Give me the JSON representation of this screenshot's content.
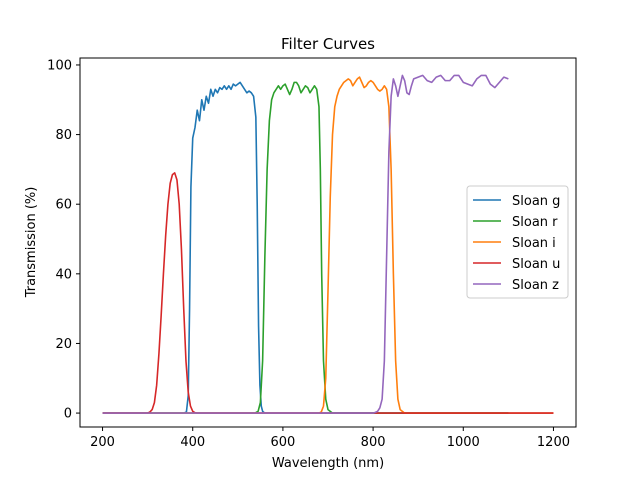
{
  "chart_data": {
    "type": "line",
    "title": "Filter Curves",
    "xlabel": "Wavelength (nm)",
    "ylabel": "Transmission (%)",
    "xlim": [
      150,
      1250
    ],
    "ylim": [
      -4,
      102
    ],
    "xticks": [
      200,
      400,
      600,
      800,
      1000,
      1200
    ],
    "yticks": [
      0,
      20,
      40,
      60,
      80,
      100
    ],
    "grid": false,
    "legend_position": "center-right",
    "series": [
      {
        "name": "Sloan g",
        "color": "#1f77b4",
        "x": [
          200,
          380,
          386,
          390,
          393,
          396,
          400,
          405,
          410,
          415,
          420,
          425,
          430,
          435,
          440,
          445,
          450,
          455,
          460,
          465,
          470,
          475,
          480,
          485,
          490,
          495,
          500,
          505,
          510,
          515,
          520,
          525,
          530,
          535,
          540,
          543,
          546,
          549,
          552,
          555,
          560,
          570,
          1100
        ],
        "y": [
          0,
          0,
          0.3,
          5,
          30,
          65,
          79,
          82,
          87,
          84,
          90,
          87,
          91,
          89,
          93,
          91,
          93,
          92,
          93.5,
          93,
          94,
          93,
          94,
          93,
          94.5,
          94,
          94.5,
          95,
          94,
          93,
          92,
          92.5,
          92,
          91,
          85,
          60,
          25,
          8,
          2,
          0.5,
          0,
          0,
          0
        ]
      },
      {
        "name": "Sloan r",
        "color": "#2ca02c",
        "x": [
          200,
          538,
          545,
          550,
          555,
          560,
          565,
          570,
          575,
          580,
          585,
          590,
          595,
          600,
          605,
          610,
          615,
          620,
          625,
          630,
          635,
          640,
          645,
          650,
          655,
          660,
          665,
          670,
          675,
          680,
          683,
          686,
          690,
          695,
          700,
          710,
          1100
        ],
        "y": [
          0,
          0,
          0.5,
          3,
          15,
          45,
          70,
          84,
          90,
          92,
          93,
          94,
          93,
          94,
          94.5,
          93,
          91.5,
          93,
          95,
          95,
          94,
          92,
          93,
          94,
          93.5,
          92,
          93,
          94,
          93,
          88,
          70,
          40,
          15,
          4,
          1,
          0,
          0
        ]
      },
      {
        "name": "Sloan i",
        "color": "#ff7f0e",
        "x": [
          200,
          680,
          685,
          690,
          695,
          700,
          705,
          710,
          715,
          720,
          725,
          730,
          735,
          740,
          745,
          750,
          755,
          760,
          765,
          770,
          775,
          780,
          785,
          790,
          795,
          800,
          805,
          810,
          815,
          820,
          825,
          830,
          835,
          840,
          845,
          850,
          855,
          860,
          870,
          1200
        ],
        "y": [
          0,
          0,
          0.3,
          2,
          10,
          35,
          62,
          80,
          88,
          91,
          93,
          94,
          95,
          95.5,
          96,
          95.5,
          94,
          95,
          96,
          96.5,
          95,
          93.5,
          94,
          95,
          95.5,
          95,
          94,
          93,
          92.5,
          93,
          94,
          93,
          88,
          70,
          40,
          15,
          4,
          1,
          0,
          0
        ]
      },
      {
        "name": "Sloan u",
        "color": "#d62728",
        "x": [
          200,
          300,
          305,
          310,
          315,
          320,
          325,
          330,
          335,
          340,
          345,
          350,
          355,
          360,
          365,
          370,
          375,
          380,
          385,
          390,
          395,
          400,
          405,
          410,
          1200
        ],
        "y": [
          0,
          0,
          0.3,
          1,
          3,
          8,
          17,
          28,
          40,
          51,
          60,
          66,
          68.5,
          69,
          67,
          60,
          47,
          30,
          15,
          6,
          2,
          0.5,
          0.1,
          0,
          0
        ]
      },
      {
        "name": "Sloan z",
        "color": "#9467bd",
        "x": [
          200,
          800,
          805,
          810,
          815,
          820,
          825,
          830,
          835,
          840,
          845,
          850,
          855,
          860,
          865,
          870,
          875,
          880,
          885,
          890,
          900,
          910,
          920,
          930,
          940,
          950,
          960,
          970,
          980,
          990,
          1000,
          1010,
          1020,
          1030,
          1040,
          1050,
          1060,
          1070,
          1080,
          1090,
          1100
        ],
        "y": [
          0,
          0,
          0.2,
          0.5,
          1.5,
          4,
          15,
          45,
          75,
          91,
          96,
          94,
          91,
          94,
          97,
          95.5,
          92,
          91.5,
          94,
          96,
          96.5,
          97,
          95.5,
          95,
          96.5,
          97,
          95.5,
          95.5,
          97,
          97,
          95,
          94.5,
          94,
          96,
          97,
          97,
          94.5,
          93.5,
          95,
          96.5,
          96
        ]
      }
    ]
  }
}
